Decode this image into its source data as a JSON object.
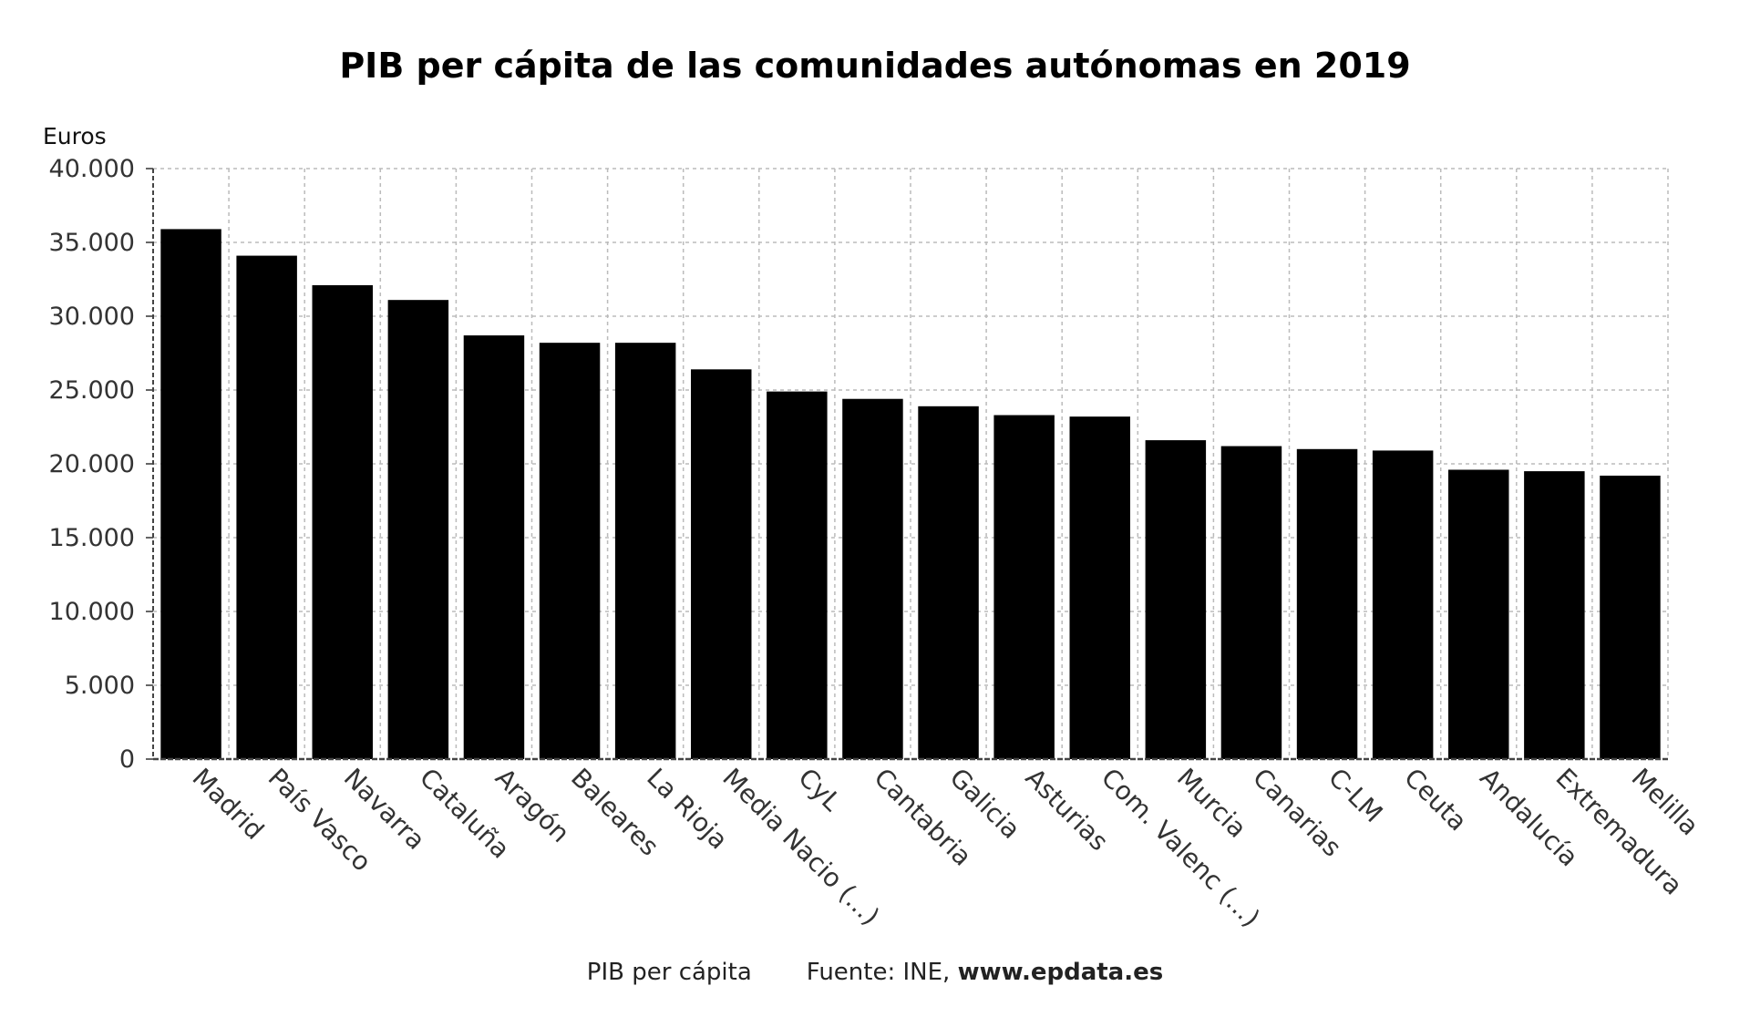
{
  "chart_data": {
    "type": "bar",
    "title": "PIB per cápita de las comunidades autónomas en 2019",
    "ylabel": "Euros",
    "xlabel": "",
    "ylim": [
      0,
      40000
    ],
    "yticks": [
      0,
      5000,
      10000,
      15000,
      20000,
      25000,
      30000,
      35000,
      40000
    ],
    "ytick_labels": [
      "0",
      "5.000",
      "10.000",
      "15.000",
      "20.000",
      "25.000",
      "30.000",
      "35.000",
      "40.000"
    ],
    "grid": true,
    "categories": [
      "Madrid",
      "País Vasco",
      "Navarra",
      "Cataluña",
      "Aragón",
      "Baleares",
      "La Rioja",
      "Media Nacio (...)",
      "CyL",
      "Cantabria",
      "Galicia",
      "Asturias",
      "Com. Valenc (...)",
      "Murcia",
      "Canarias",
      "C-LM",
      "Ceuta",
      "Andalucía",
      "Extremadura",
      "Melilla"
    ],
    "series": [
      {
        "name": "PIB per cápita",
        "color": "#000000",
        "values": [
          35900,
          34100,
          32100,
          31100,
          28700,
          28200,
          28200,
          26400,
          24900,
          24400,
          23900,
          23300,
          23200,
          21600,
          21200,
          21000,
          20900,
          19600,
          19500,
          19200
        ]
      }
    ]
  },
  "footer": {
    "series_label": "PIB per cápita",
    "source_prefix": "Fuente: INE, ",
    "source_site": "www.epdata.es"
  }
}
